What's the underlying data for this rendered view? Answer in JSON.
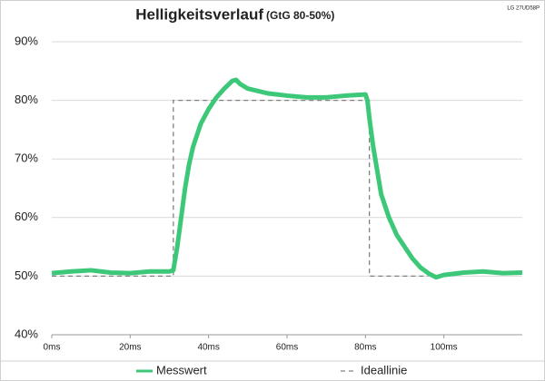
{
  "chart_data": {
    "type": "line",
    "title": "Helligkeitsverlauf",
    "subtitle": "(GtG 80-50%)",
    "annotation": "LG 27UD58P",
    "xlim": [
      0,
      120
    ],
    "ylim": [
      40,
      90
    ],
    "xticks": [
      {
        "value": 0,
        "label": "0ms"
      },
      {
        "value": 20,
        "label": "20ms"
      },
      {
        "value": 40,
        "label": "40ms"
      },
      {
        "value": 60,
        "label": "60ms"
      },
      {
        "value": 80,
        "label": "80ms"
      },
      {
        "value": 100,
        "label": "100ms"
      }
    ],
    "yticks": [
      {
        "value": 40,
        "label": "40%"
      },
      {
        "value": 50,
        "label": "50%"
      },
      {
        "value": 60,
        "label": "60%"
      },
      {
        "value": 70,
        "label": "70%"
      },
      {
        "value": 80,
        "label": "80%"
      },
      {
        "value": 90,
        "label": "90%"
      }
    ],
    "grid": true,
    "legend": "bottom",
    "series": [
      {
        "name": "Messwert",
        "color": "#3cc878",
        "dashed": false,
        "x": [
          0,
          5,
          10,
          15,
          20,
          25,
          30,
          31,
          32,
          33,
          34,
          35,
          36,
          38,
          40,
          42,
          44,
          46,
          47,
          48,
          50,
          55,
          60,
          65,
          70,
          75,
          80,
          80.5,
          81,
          82,
          83,
          84,
          86,
          88,
          90,
          92,
          94,
          96,
          98,
          100,
          105,
          110,
          115,
          120
        ],
        "values": [
          50.5,
          50.8,
          51,
          50.6,
          50.5,
          50.8,
          50.8,
          51,
          55,
          60,
          65,
          69,
          72,
          76,
          78.5,
          80.5,
          82,
          83.3,
          83.5,
          82.8,
          82,
          81.2,
          80.8,
          80.5,
          80.5,
          80.8,
          81,
          80,
          77,
          72,
          68,
          64,
          60,
          57,
          55,
          53,
          51.5,
          50.5,
          49.8,
          50.2,
          50.6,
          50.8,
          50.5,
          50.6
        ]
      },
      {
        "name": "Ideallinie",
        "color": "#808080",
        "dashed": true,
        "x": [
          0,
          31,
          31,
          81,
          81,
          96
        ],
        "values": [
          50,
          50,
          80,
          80,
          50,
          50
        ]
      }
    ]
  }
}
